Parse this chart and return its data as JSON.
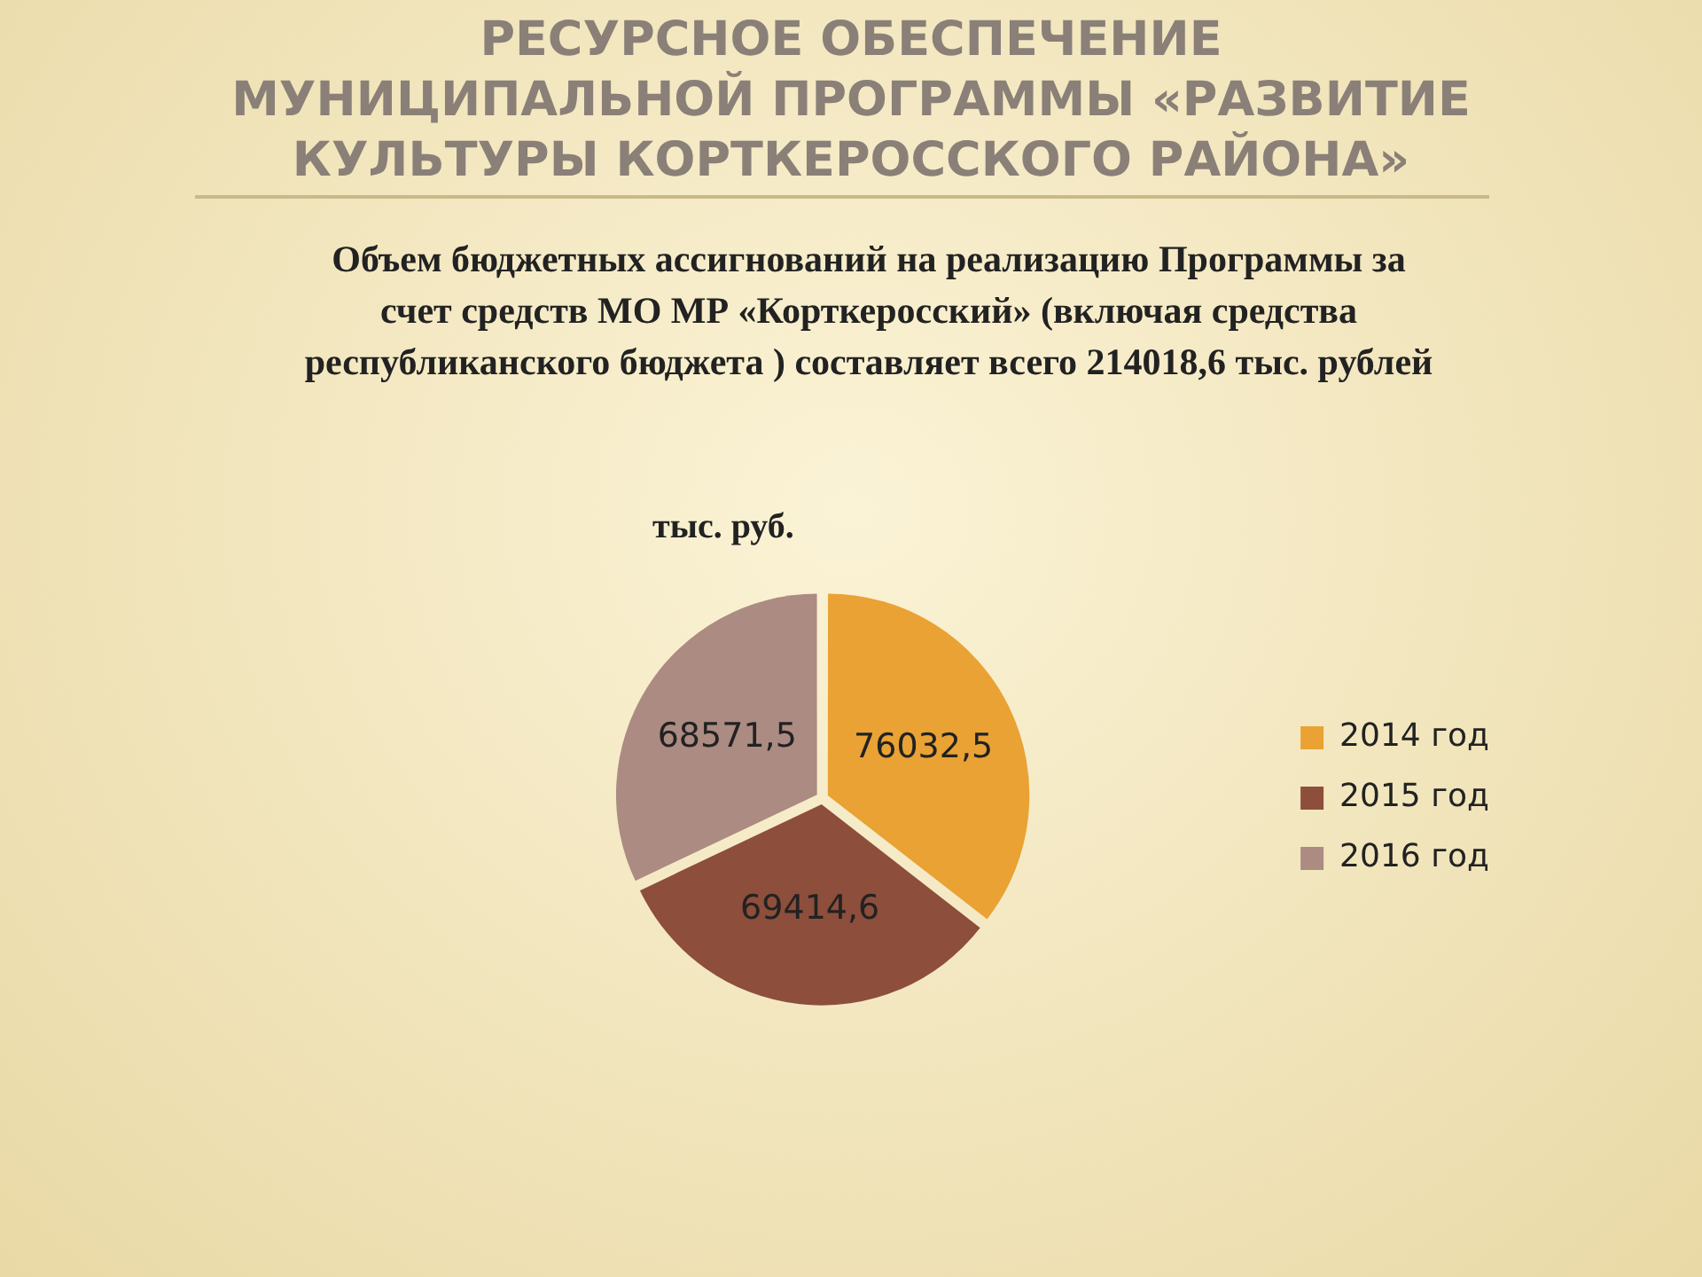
{
  "chart_data": {
    "type": "pie",
    "title": "РЕСУРСНОЕ ОБЕСПЕЧЕНИЕ МУНИЦИПАЛЬНОЙ ПРОГРАММЫ «РАЗВИТИЕ КУЛЬТУРЫ КОРТКЕРОССКОГО РАЙОНА»",
    "subtitle": "Объем бюджетных ассигнований на реализацию Программы за счет  средств МО МР «Корткеросский» (включая средства республиканского бюджета ) составляет всего 214018,6 тыс. рублей",
    "annotations": [
      "тыс. руб."
    ],
    "categories": [
      "2014 год",
      "2015 год",
      "2016 год"
    ],
    "values": [
      76032.5,
      69414.6,
      68571.5
    ],
    "value_labels": [
      "76032,5",
      "69414,6",
      "68571,5"
    ],
    "colors": [
      "#e9a233",
      "#8e4e3c",
      "#ac8b82"
    ],
    "legend": "right"
  }
}
